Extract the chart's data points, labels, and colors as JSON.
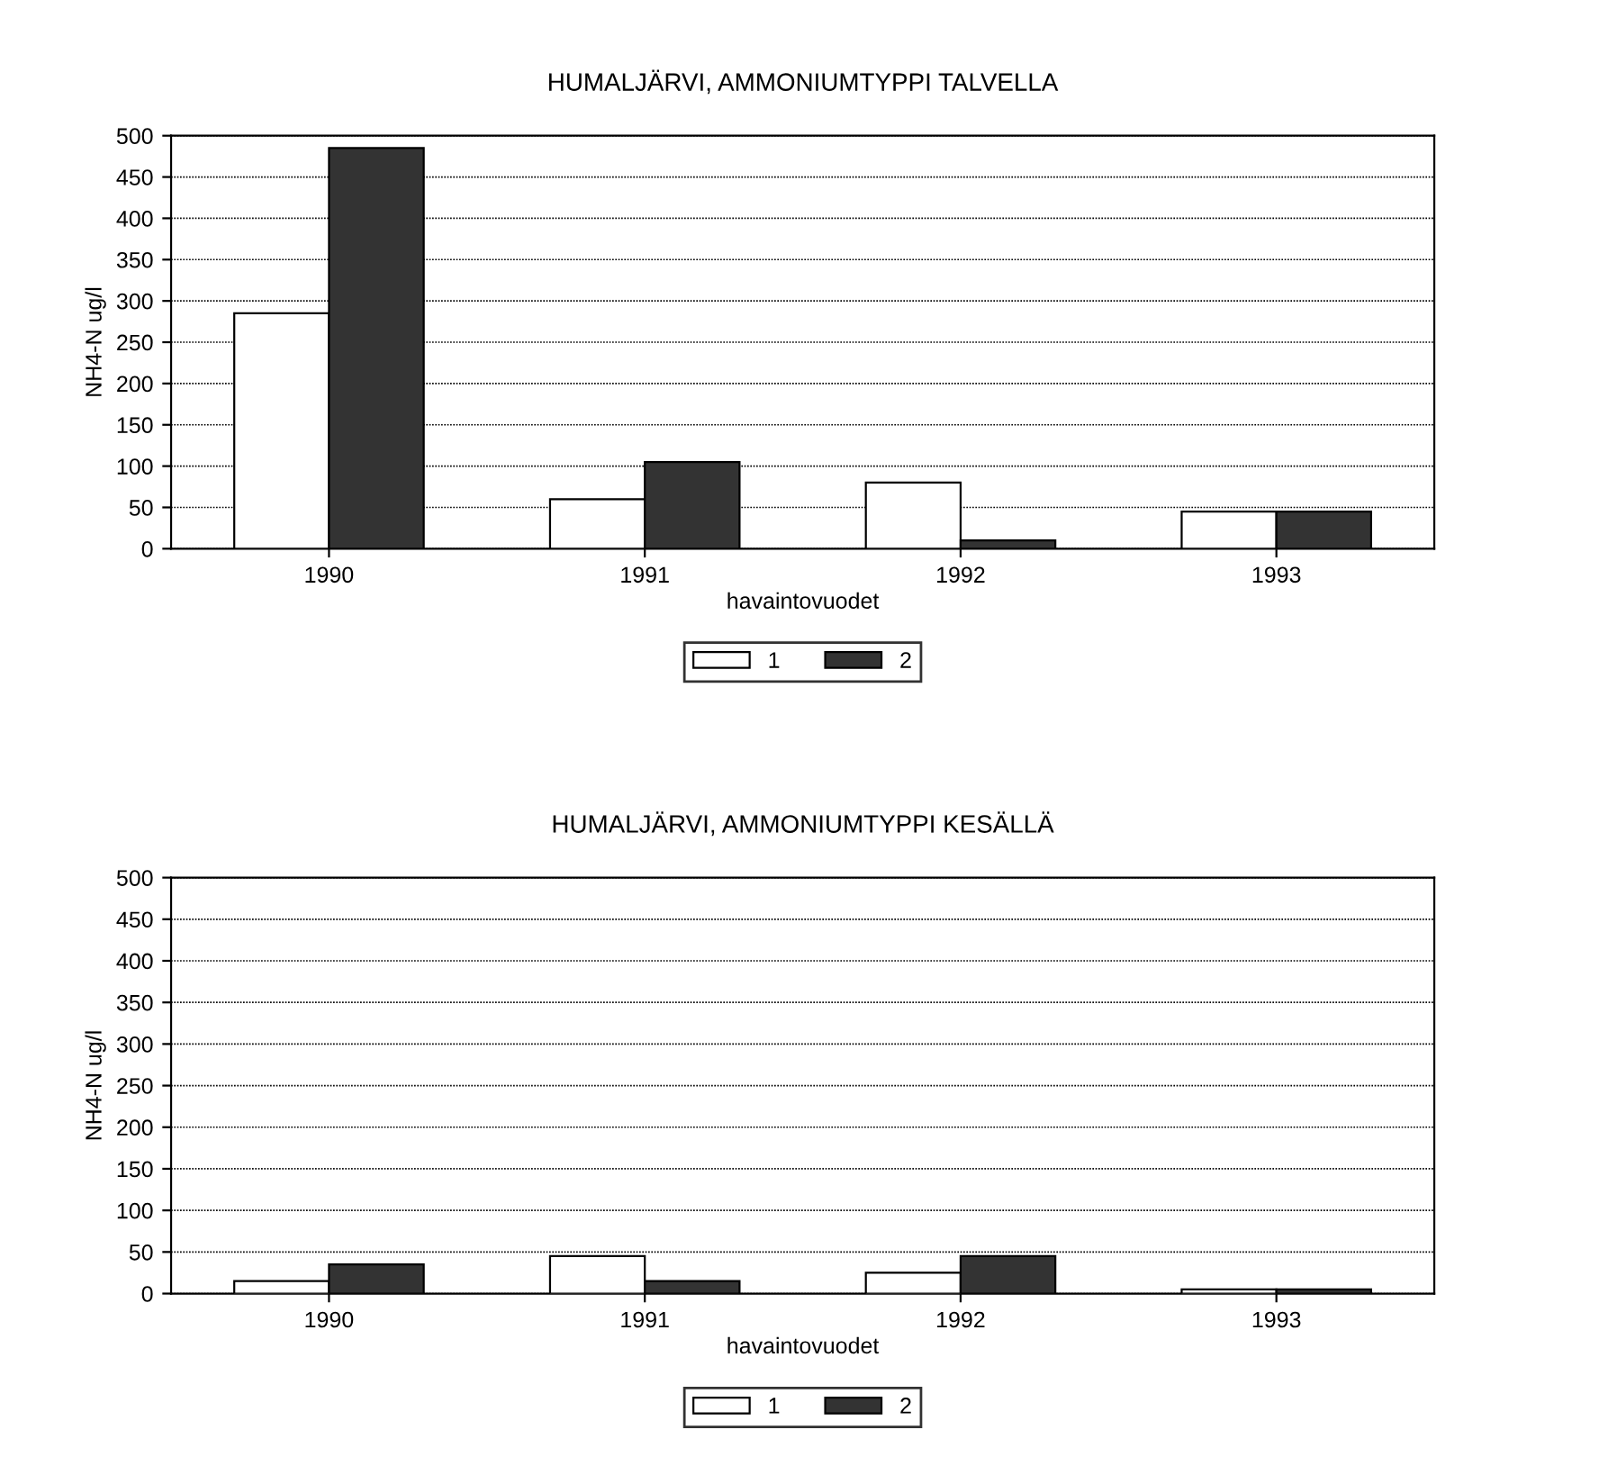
{
  "chart_data": [
    {
      "type": "bar",
      "title": "HUMALJÄRVI, AMMONIUMTYPPI TALVELLA",
      "xlabel": "havaintovuodet",
      "ylabel": "NH4-N ug/l",
      "categories": [
        "1990",
        "1991",
        "1992",
        "1993"
      ],
      "series": [
        {
          "name": "1",
          "color": "#ffffff",
          "values": [
            285,
            60,
            80,
            45
          ]
        },
        {
          "name": "2",
          "color": "#333333",
          "values": [
            485,
            105,
            10,
            45
          ]
        }
      ],
      "ylim": [
        0,
        500
      ],
      "yticks": [
        0,
        50,
        100,
        150,
        200,
        250,
        300,
        350,
        400,
        450,
        500
      ],
      "grid": "y",
      "legend": "bottom"
    },
    {
      "type": "bar",
      "title": "HUMALJÄRVI, AMMONIUMTYPPI KESÄLLÄ",
      "xlabel": "havaintovuodet",
      "ylabel": "NH4-N ug/l",
      "categories": [
        "1990",
        "1991",
        "1992",
        "1993"
      ],
      "series": [
        {
          "name": "1",
          "color": "#ffffff",
          "values": [
            15,
            45,
            25,
            5
          ]
        },
        {
          "name": "2",
          "color": "#333333",
          "values": [
            35,
            15,
            45,
            5
          ]
        }
      ],
      "ylim": [
        0,
        500
      ],
      "yticks": [
        0,
        50,
        100,
        150,
        200,
        250,
        300,
        350,
        400,
        450,
        500
      ],
      "grid": "y",
      "legend": "bottom"
    }
  ]
}
